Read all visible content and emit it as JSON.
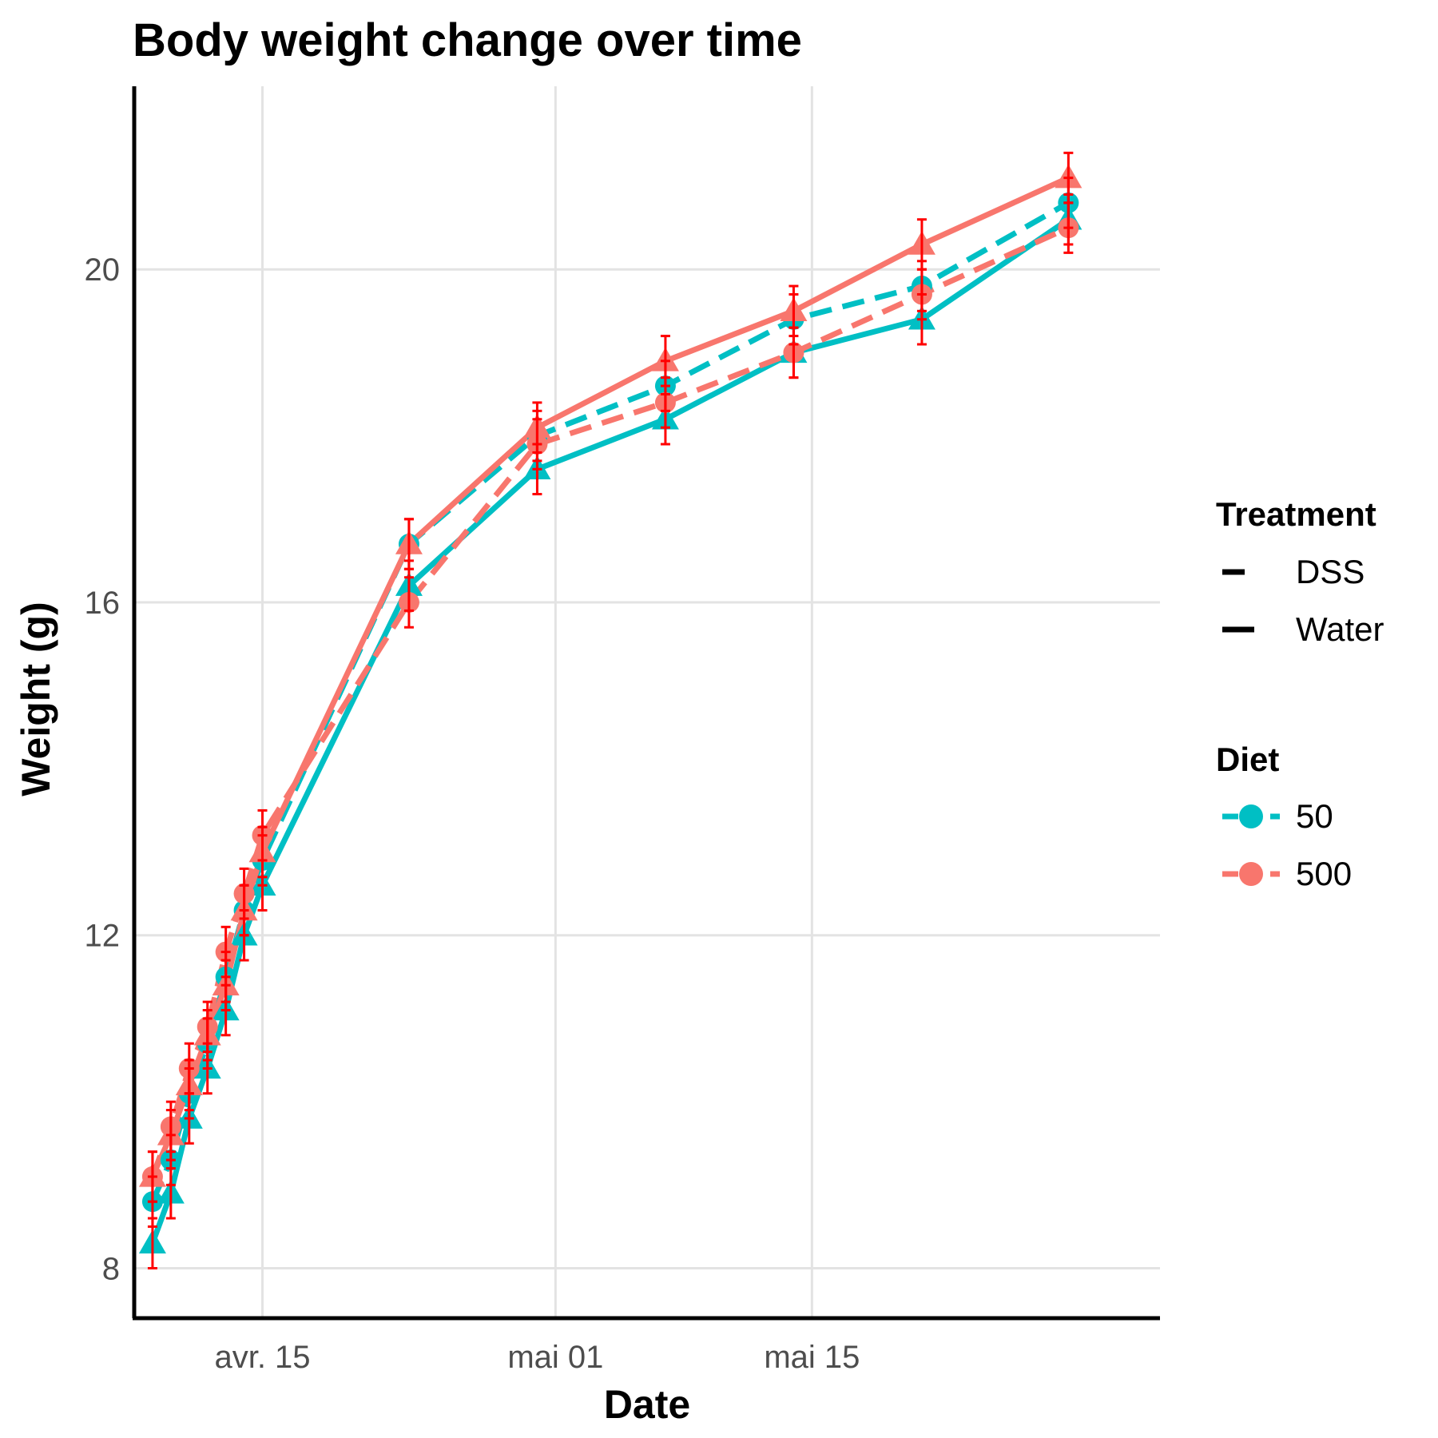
{
  "chart_data": {
    "type": "line",
    "title": "Body weight change over time",
    "xlabel": "Date",
    "ylabel": "Weight (g)",
    "x_ticks": [
      "avr. 15",
      "mai 01",
      "mai 15"
    ],
    "y_ticks": [
      8,
      12,
      16,
      20
    ],
    "ylim": [
      7.4,
      22.2
    ],
    "x_range": [
      "2021-04-08",
      "2021-06-03"
    ],
    "x": [
      "2021-04-09",
      "2021-04-10",
      "2021-04-11",
      "2021-04-12",
      "2021-04-13",
      "2021-04-14",
      "2021-04-15",
      "2021-04-23",
      "2021-04-30",
      "2021-05-07",
      "2021-05-14",
      "2021-05-21",
      "2021-05-29"
    ],
    "legend": {
      "treatment_title": "Treatment",
      "treatment_items": [
        {
          "label": "DSS",
          "linetype": "dashed"
        },
        {
          "label": "Water",
          "linetype": "solid"
        }
      ],
      "diet_title": "Diet",
      "diet_items": [
        {
          "label": "50",
          "color": "#00BFC4"
        },
        {
          "label": "500",
          "color": "#F8766D"
        }
      ],
      "position": "right"
    },
    "error_bar_color": "#FF0000",
    "series": [
      {
        "diet": "50",
        "treatment": "DSS",
        "color": "#00BFC4",
        "linetype": "dashed",
        "marker": "circle",
        "values": [
          8.8,
          9.3,
          10.1,
          10.7,
          11.5,
          12.3,
          12.9,
          16.7,
          18.0,
          18.6,
          19.4,
          19.8,
          20.8
        ],
        "errors": [
          0.3,
          0.3,
          0.3,
          0.3,
          0.3,
          0.3,
          0.3,
          0.3,
          0.3,
          0.3,
          0.3,
          0.3,
          0.3
        ]
      },
      {
        "diet": "50",
        "treatment": "Water",
        "color": "#00BFC4",
        "linetype": "solid",
        "marker": "triangle",
        "values": [
          8.3,
          8.9,
          9.8,
          10.4,
          11.1,
          12.0,
          12.6,
          16.2,
          17.6,
          18.2,
          19.0,
          19.4,
          20.6
        ],
        "errors": [
          0.3,
          0.3,
          0.3,
          0.3,
          0.3,
          0.3,
          0.3,
          0.3,
          0.3,
          0.3,
          0.3,
          0.3,
          0.3
        ]
      },
      {
        "diet": "500",
        "treatment": "DSS",
        "color": "#F8766D",
        "linetype": "dashed",
        "marker": "circle",
        "values": [
          9.1,
          9.7,
          10.4,
          10.9,
          11.8,
          12.5,
          13.2,
          16.0,
          17.9,
          18.4,
          19.0,
          19.7,
          20.5
        ],
        "errors": [
          0.3,
          0.3,
          0.3,
          0.3,
          0.3,
          0.3,
          0.3,
          0.3,
          0.3,
          0.3,
          0.3,
          0.3,
          0.3
        ]
      },
      {
        "diet": "500",
        "treatment": "Water",
        "color": "#F8766D",
        "linetype": "solid",
        "marker": "triangle",
        "values": [
          9.1,
          9.6,
          10.2,
          10.8,
          11.4,
          12.3,
          13.0,
          16.7,
          18.1,
          18.9,
          19.5,
          20.3,
          21.1
        ],
        "errors": [
          0.3,
          0.3,
          0.3,
          0.3,
          0.3,
          0.3,
          0.3,
          0.3,
          0.3,
          0.3,
          0.3,
          0.3,
          0.3
        ]
      }
    ],
    "grid": true
  }
}
